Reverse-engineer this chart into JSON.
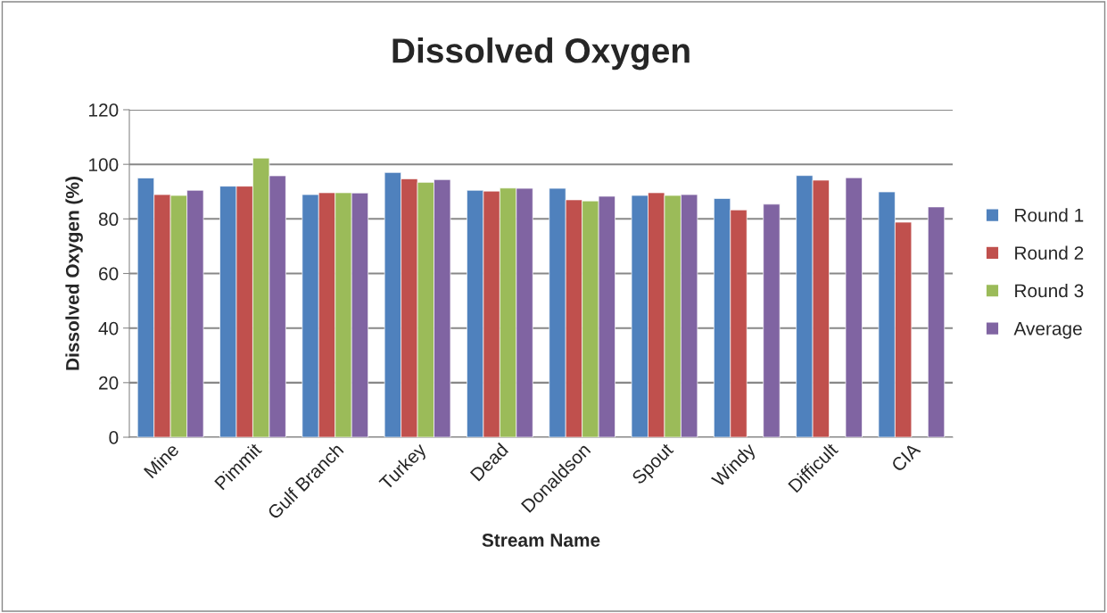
{
  "chart_data": {
    "type": "bar",
    "title": "Dissolved Oxygen",
    "xlabel": "Stream Name",
    "ylabel": "Dissolved Oxygen (%)",
    "categories": [
      "Mine",
      "Pimmit",
      "Gulf Branch",
      "Turkey",
      "Dead",
      "Donaldson",
      "Spout",
      "Windy",
      "Difficult",
      "CIA"
    ],
    "series": [
      {
        "name": "Round 1",
        "color": "#4f81bd",
        "values": [
          95.0,
          92.0,
          88.9,
          97.0,
          90.5,
          91.2,
          88.6,
          87.5,
          95.9,
          89.9
        ]
      },
      {
        "name": "Round 2",
        "color": "#c0504d",
        "values": [
          88.9,
          92.0,
          89.6,
          94.7,
          90.2,
          87.0,
          89.6,
          83.3,
          94.2,
          78.8
        ]
      },
      {
        "name": "Round 3",
        "color": "#9bbb59",
        "values": [
          88.6,
          102.3,
          89.6,
          93.4,
          91.3,
          86.6,
          88.6,
          null,
          null,
          null
        ]
      },
      {
        "name": "Average",
        "color": "#8064a2",
        "values": [
          90.5,
          95.8,
          89.5,
          94.4,
          91.2,
          88.3,
          88.9,
          85.4,
          95.1,
          84.4
        ]
      }
    ],
    "ylim": [
      0,
      120
    ],
    "yticks": [
      0,
      20,
      40,
      60,
      80,
      100,
      120
    ],
    "grid": "y",
    "legend": "right"
  }
}
